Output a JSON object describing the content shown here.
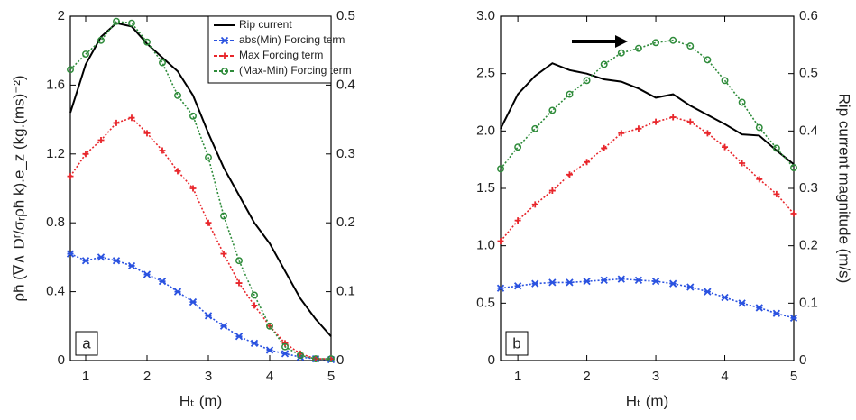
{
  "chart_data": [
    {
      "type": "line",
      "panel_label": "a",
      "xlabel": "Hₜ (m)",
      "ylabel": "ρh̄ (∇∧ Dʳ/σᵣρh̄ k).e_z (kg.(ms)⁻²)",
      "x": [
        0.75,
        1,
        1.25,
        1.5,
        1.75,
        2,
        2.25,
        2.5,
        2.75,
        3,
        3.25,
        3.5,
        3.75,
        4,
        4.25,
        4.5,
        4.75,
        5
      ],
      "xlim": [
        0.75,
        5
      ],
      "xticks": [
        1,
        2,
        3,
        4,
        5
      ],
      "ylim": [
        0,
        2
      ],
      "yticks": [
        0,
        0.4,
        0.8,
        1.2,
        1.6,
        2
      ],
      "y2lim": [
        0,
        0.5
      ],
      "y2ticks": [
        0,
        0.1,
        0.2,
        0.3,
        0.4,
        0.5
      ],
      "legend": "upper right",
      "series": [
        {
          "name": "Rip current",
          "color": "#000000",
          "marker": "none",
          "axis": "y2",
          "values": [
            0.36,
            0.43,
            0.47,
            0.49,
            0.485,
            0.46,
            0.44,
            0.42,
            0.385,
            0.33,
            0.28,
            0.24,
            0.2,
            0.17,
            0.13,
            0.09,
            0.06,
            0.035
          ]
        },
        {
          "name": "abs(Min) Forcing term",
          "color": "#2a52e0",
          "marker": "star",
          "values": [
            0.62,
            0.58,
            0.6,
            0.58,
            0.55,
            0.5,
            0.46,
            0.4,
            0.34,
            0.26,
            0.2,
            0.14,
            0.1,
            0.06,
            0.04,
            0.02,
            0.01,
            0.005
          ]
        },
        {
          "name": "Max Forcing term",
          "color": "#e8262b",
          "marker": "plus",
          "values": [
            1.07,
            1.2,
            1.28,
            1.38,
            1.41,
            1.32,
            1.22,
            1.1,
            1.0,
            0.8,
            0.62,
            0.45,
            0.32,
            0.2,
            0.1,
            0.04,
            0.01,
            0.01
          ]
        },
        {
          "name": "(Max-Min) Forcing term",
          "color": "#2e8b3a",
          "marker": "circle",
          "values": [
            1.69,
            1.78,
            1.86,
            1.97,
            1.96,
            1.85,
            1.73,
            1.54,
            1.42,
            1.18,
            0.84,
            0.58,
            0.38,
            0.2,
            0.08,
            0.03,
            0.01,
            0.01
          ]
        }
      ]
    },
    {
      "type": "line",
      "panel_label": "b",
      "xlabel": "Hₜ (m)",
      "y2label": "Rip current magnitude (m/s)",
      "x": [
        0.75,
        1,
        1.25,
        1.5,
        1.75,
        2,
        2.25,
        2.5,
        2.75,
        3,
        3.25,
        3.5,
        3.75,
        4,
        4.25,
        4.5,
        4.75,
        5
      ],
      "xlim": [
        0.75,
        5
      ],
      "xticks": [
        1,
        2,
        3,
        4,
        5
      ],
      "ylim": [
        0,
        3
      ],
      "yticks": [
        0,
        0.5,
        {
          "value": 1,
          "label": "1.0"
        },
        1.5,
        {
          "value": 2,
          "label": "2.0"
        },
        2.5,
        {
          "value": 3,
          "label": "3.0"
        }
      ],
      "y2lim": [
        0,
        0.6
      ],
      "y2ticks": [
        0,
        0.1,
        0.2,
        0.3,
        0.4,
        0.5,
        0.6
      ],
      "series": [
        {
          "color": "#000000",
          "marker": "none",
          "axis": "y2",
          "values": [
            0.404,
            0.464,
            0.496,
            0.518,
            0.506,
            0.5,
            0.49,
            0.486,
            0.474,
            0.458,
            0.464,
            0.444,
            0.428,
            0.412,
            0.394,
            0.392,
            0.366,
            0.342
          ]
        },
        {
          "color": "#2a52e0",
          "marker": "star",
          "values": [
            0.63,
            0.65,
            0.67,
            0.68,
            0.68,
            0.69,
            0.7,
            0.71,
            0.7,
            0.69,
            0.67,
            0.64,
            0.6,
            0.55,
            0.5,
            0.46,
            0.41,
            0.37
          ]
        },
        {
          "color": "#e8262b",
          "marker": "plus",
          "values": [
            1.04,
            1.22,
            1.36,
            1.48,
            1.62,
            1.73,
            1.85,
            1.98,
            2.02,
            2.08,
            2.12,
            2.08,
            1.98,
            1.86,
            1.72,
            1.58,
            1.45,
            1.28
          ]
        },
        {
          "color": "#2e8b3a",
          "marker": "circle",
          "values": [
            1.67,
            1.86,
            2.02,
            2.18,
            2.32,
            2.44,
            2.58,
            2.68,
            2.72,
            2.77,
            2.79,
            2.74,
            2.62,
            2.44,
            2.25,
            2.03,
            1.85,
            1.68
          ]
        }
      ]
    }
  ]
}
